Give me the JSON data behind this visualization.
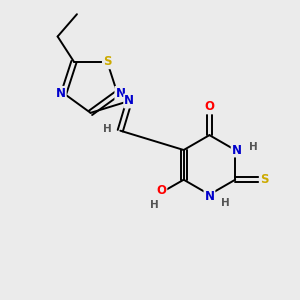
{
  "bg_color": "#ebebeb",
  "atom_colors": {
    "C": "#000000",
    "N": "#0000cc",
    "O": "#ff0000",
    "S": "#ccaa00",
    "H": "#555555"
  },
  "bond_color": "#000000",
  "font_size_atom": 8.5
}
